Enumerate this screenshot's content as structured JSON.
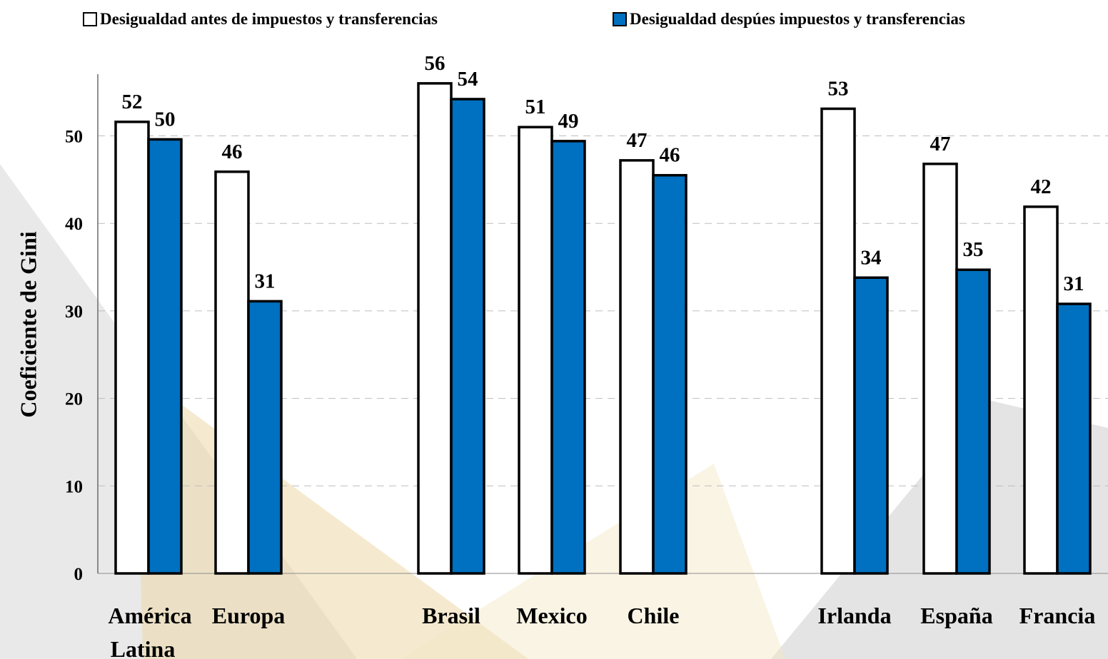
{
  "chart_data": {
    "type": "bar",
    "title": "",
    "xlabel": "",
    "ylabel": "Coeficiente de Gini",
    "ylim": [
      0,
      55
    ],
    "yticks": [
      0,
      10,
      20,
      30,
      40,
      50
    ],
    "grid": true,
    "legend_position": "top",
    "categories": [
      "América Latina",
      "Europa",
      "Brasil",
      "Mexico",
      "Chile",
      "Irlanda",
      "España",
      "Francia"
    ],
    "category_lines": [
      [
        "América",
        "Latina"
      ],
      [
        "Europa"
      ],
      [
        "Brasil"
      ],
      [
        "Mexico"
      ],
      [
        "Chile"
      ],
      [
        "Irlanda"
      ],
      [
        "España"
      ],
      [
        "Francia"
      ]
    ],
    "series": [
      {
        "name": "Desigualdad antes de impuestos y transferencias",
        "color": "#ffffff",
        "values": [
          51.6,
          45.9,
          56.0,
          51.0,
          47.2,
          53.1,
          46.8,
          41.9
        ],
        "labels": [
          "52",
          "46",
          "56",
          "51",
          "47",
          "53",
          "47",
          "42"
        ]
      },
      {
        "name": "Desigualdad despúes impuestos y transferencias",
        "color": "#0070c0",
        "values": [
          49.6,
          31.1,
          54.2,
          49.4,
          45.5,
          33.8,
          34.7,
          30.8
        ],
        "labels": [
          "50",
          "31",
          "54",
          "49",
          "46",
          "34",
          "35",
          "31"
        ]
      }
    ]
  }
}
